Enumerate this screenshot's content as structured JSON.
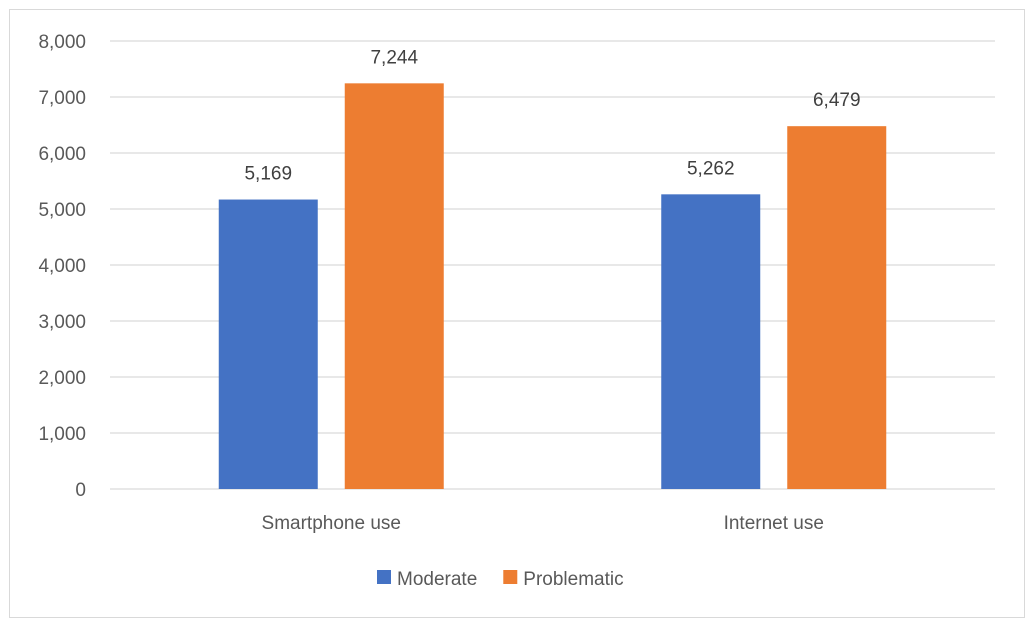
{
  "chart_data": {
    "type": "bar",
    "categories": [
      "Smartphone use",
      "Internet use"
    ],
    "series": [
      {
        "name": "Moderate",
        "values": [
          5169,
          5262
        ],
        "labels": [
          "5,169",
          "5,262"
        ],
        "color": "#4472c4"
      },
      {
        "name": "Problematic",
        "values": [
          7244,
          6479
        ],
        "labels": [
          "7,244",
          "6,479"
        ],
        "color": "#ed7d31"
      }
    ],
    "yticks": [
      "0",
      "1,000",
      "2,000",
      "3,000",
      "4,000",
      "5,000",
      "6,000",
      "7,000",
      "8,000"
    ],
    "ylim": [
      0,
      8000
    ],
    "grid": true,
    "legend_position": "bottom"
  }
}
